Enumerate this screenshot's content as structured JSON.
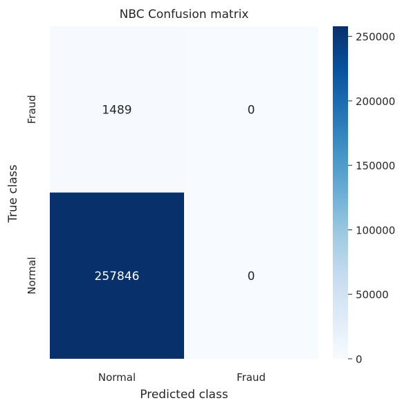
{
  "chart_data": {
    "type": "heatmap",
    "title": "NBC Confusion matrix",
    "xlabel": "Predicted class",
    "ylabel": "True class",
    "x_categories": [
      "Normal",
      "Fraud"
    ],
    "y_categories": [
      "Fraud",
      "Normal"
    ],
    "matrix": [
      [
        1489,
        0
      ],
      [
        257846,
        0
      ]
    ],
    "cell_labels": [
      [
        "1489",
        "0"
      ],
      [
        "257846",
        "0"
      ]
    ],
    "colorbar": {
      "range": [
        0,
        257846
      ],
      "ticks": [
        0,
        50000,
        100000,
        150000,
        200000,
        250000
      ],
      "tick_labels": [
        "0",
        "50000",
        "100000",
        "150000",
        "200000",
        "250000"
      ]
    },
    "colormap": "Blues",
    "colors": {
      "low": "#f7fbff",
      "high": "#08306b",
      "text_dark": "#262626",
      "text_light": "#ffffff"
    },
    "grid": false
  }
}
